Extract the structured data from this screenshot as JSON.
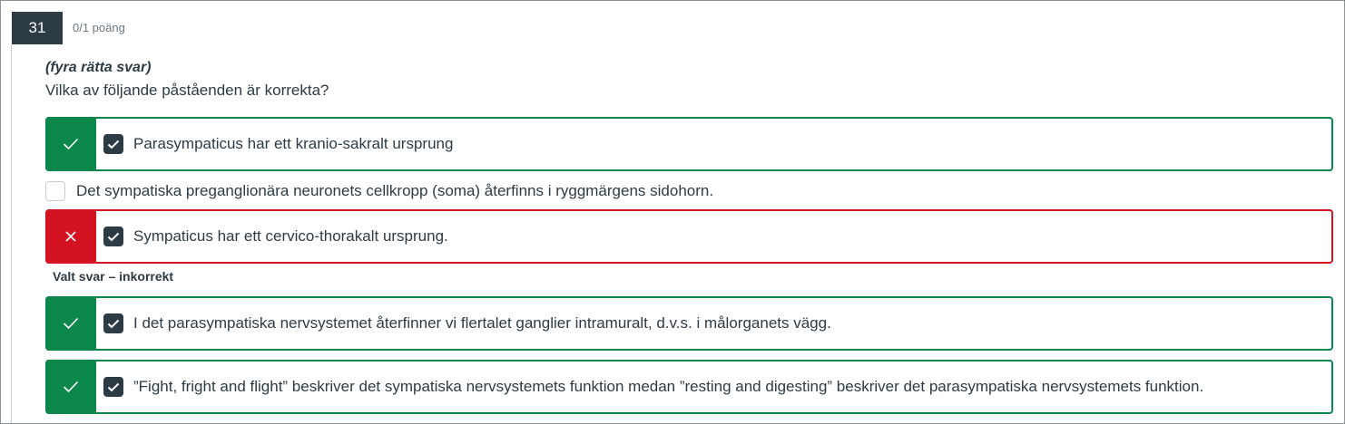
{
  "question": {
    "number": "31",
    "points": "0/1 poäng",
    "hint": "(fyra rätta svar)",
    "prompt": "Vilka av följande påståenden är korrekta?"
  },
  "answers": [
    {
      "text": "Parasympaticus har ett kranio-sakralt ursprung",
      "status": "correct",
      "checked": true,
      "mark_icon": "check-icon"
    },
    {
      "text": "Det sympatiska preganglionära neuronets cellkropp (soma) återfinns i ryggmärgens sidohorn.",
      "status": "none",
      "checked": false
    },
    {
      "text": "Sympaticus har ett cervico-thorakalt ursprung.",
      "status": "incorrect",
      "checked": true,
      "mark_icon": "x-icon"
    },
    {
      "text": "I det parasympatiska nervsystemet återfinner vi flertalet ganglier intramuralt, d.v.s. i målorganets vägg.",
      "status": "correct",
      "checked": true,
      "mark_icon": "check-icon"
    },
    {
      "text": "”Fight, fright and flight” beskriver det sympatiska nervsystemets funktion medan ”resting and digesting” beskriver det parasympatiska nervsystemets funktion.",
      "status": "correct",
      "checked": true,
      "mark_icon": "check-icon"
    }
  ],
  "feedback": {
    "selected_incorrect": "Valt svar – inkorrekt"
  },
  "colors": {
    "correct": "#0b874b",
    "incorrect": "#d31321",
    "header_bg": "#2d3b45"
  }
}
